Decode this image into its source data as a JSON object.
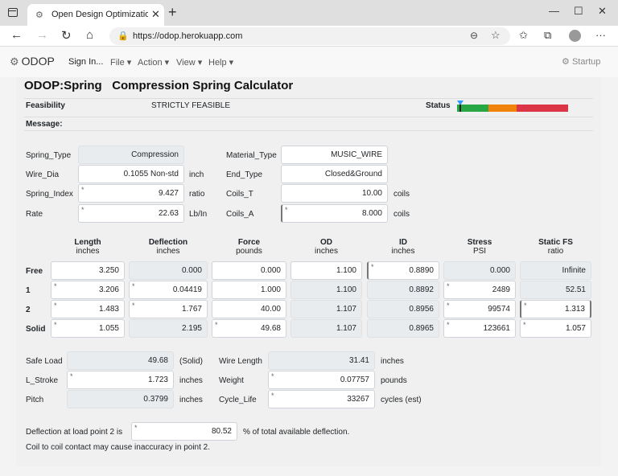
{
  "browser": {
    "tab_title": "Open Design Optimization Platfo",
    "url": "https://odop.herokuapp.com"
  },
  "nav": {
    "brand": "ODOP",
    "sign_in": "Sign In...",
    "menus": [
      "File",
      "Action",
      "View",
      "Help"
    ],
    "startup": "Startup"
  },
  "page": {
    "title": "ODOP:Spring",
    "subtitle": "Compression Spring Calculator",
    "feasibility_label": "Feasibility",
    "feasibility_value": "STRICTLY FEASIBLE",
    "status_label": "Status",
    "message_label": "Message:",
    "status_colors": [
      "#28a745",
      "#f0830c",
      "#dc3545"
    ]
  },
  "props": {
    "spring_type": {
      "label": "Spring_Type",
      "value": "Compression"
    },
    "wire_dia": {
      "label": "Wire_Dia",
      "value": "0.1055 Non-std",
      "unit": "inch"
    },
    "spring_index": {
      "label": "Spring_Index",
      "value": "9.427",
      "unit": "ratio"
    },
    "rate": {
      "label": "Rate",
      "value": "22.63",
      "unit": "Lb/In"
    },
    "material_type": {
      "label": "Material_Type",
      "value": "MUSIC_WIRE"
    },
    "end_type": {
      "label": "End_Type",
      "value": "Closed&Ground"
    },
    "coils_t": {
      "label": "Coils_T",
      "value": "10.00",
      "unit": "coils"
    },
    "coils_a": {
      "label": "Coils_A",
      "value": "8.000",
      "unit": "coils"
    }
  },
  "table": {
    "columns": [
      {
        "name": "Length",
        "unit": "inches"
      },
      {
        "name": "Deflection",
        "unit": "inches"
      },
      {
        "name": "Force",
        "unit": "pounds"
      },
      {
        "name": "OD",
        "unit": "inches"
      },
      {
        "name": "ID",
        "unit": "inches"
      },
      {
        "name": "Stress",
        "unit": "PSI"
      },
      {
        "name": "Static FS",
        "unit": "ratio"
      }
    ],
    "rows": [
      {
        "label": "Free",
        "values": [
          "3.250",
          "0.000",
          "0.000",
          "1.100",
          "0.8890",
          "0.000",
          "Infinite"
        ]
      },
      {
        "label": "1",
        "values": [
          "3.206",
          "0.04419",
          "1.000",
          "1.100",
          "0.8892",
          "2489",
          "52.51"
        ]
      },
      {
        "label": "2",
        "values": [
          "1.483",
          "1.767",
          "40.00",
          "1.107",
          "0.8956",
          "99574",
          "1.313"
        ]
      },
      {
        "label": "Solid",
        "values": [
          "1.055",
          "2.195",
          "49.68",
          "1.107",
          "0.8965",
          "123661",
          "1.057"
        ]
      }
    ]
  },
  "reports": {
    "safe_load": {
      "label": "Safe Load",
      "value": "49.68",
      "unit": "(Solid)"
    },
    "l_stroke": {
      "label": "L_Stroke",
      "value": "1.723",
      "unit": "inches"
    },
    "pitch": {
      "label": "Pitch",
      "value": "0.3799",
      "unit": "inches"
    },
    "wire_length": {
      "label": "Wire Length",
      "value": "31.41",
      "unit": "inches"
    },
    "weight": {
      "label": "Weight",
      "value": "0.07757",
      "unit": "pounds"
    },
    "cycle_life": {
      "label": "Cycle_Life",
      "value": "33267",
      "unit": "cycles (est)"
    }
  },
  "footer": {
    "deflection_prefix": "Deflection at load point 2 is",
    "deflection_value": "80.52",
    "deflection_suffix": "% of total available deflection.",
    "warning": "Coil to coil contact may cause inaccuracy in point 2."
  }
}
